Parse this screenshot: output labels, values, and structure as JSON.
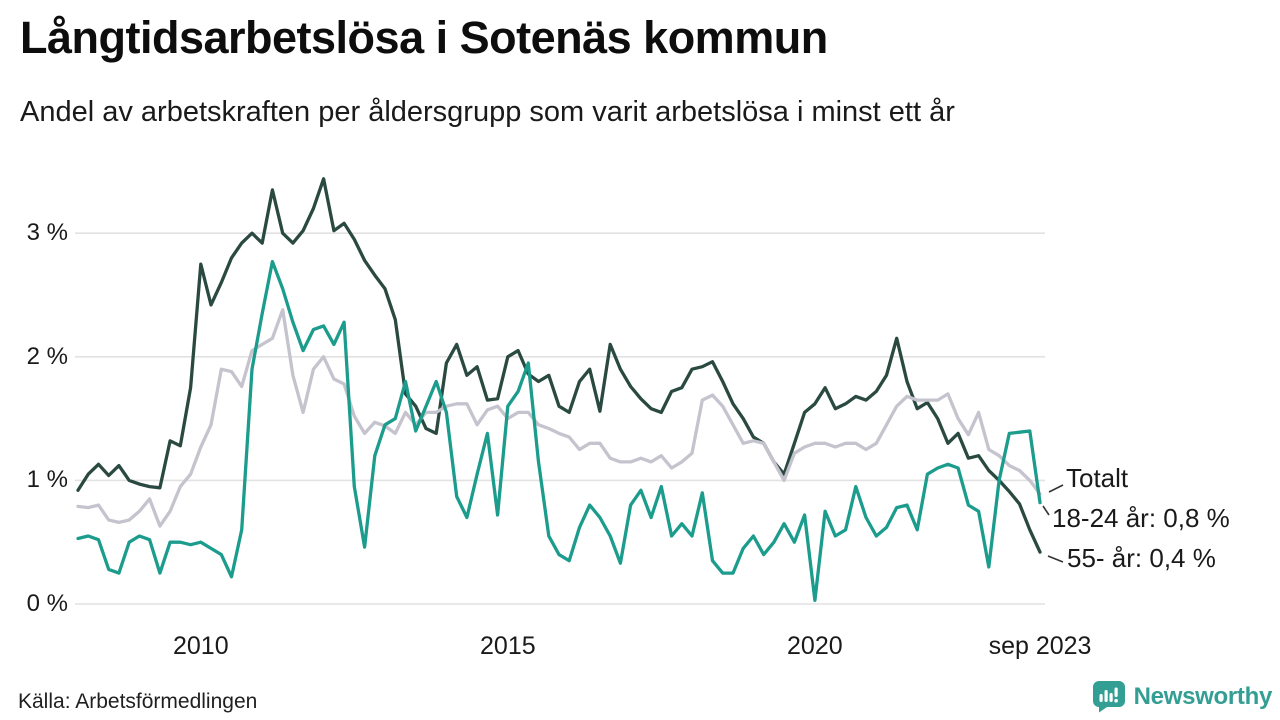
{
  "header": {
    "title": "Långtidsarbetslösa i Sotenäs kommun",
    "subtitle": "Andel av arbetskraften per åldersgrupp som varit arbetslösa i minst ett år"
  },
  "footer": {
    "source": "Källa: Arbetsförmedlingen",
    "brand": "Newsworthy"
  },
  "annotations": {
    "totalt_label": "Totalt",
    "youth_label": "18-24 år: 0,8 %",
    "senior_label": "55- år: 0,4 %"
  },
  "colors": {
    "senior_line": "#2a4a41",
    "total_line": "#c5c3cd",
    "youth_line": "#1b9c8d",
    "grid": "#e2e2e2",
    "connector": "#333333",
    "brand_teal": "#339e93",
    "text": "#1a1a1a"
  },
  "chart_data": {
    "type": "line",
    "title": "Långtidsarbetslösa i Sotenäs kommun",
    "subtitle": "Andel av arbetskraften per åldersgrupp som varit arbetslösa i minst ett år",
    "x_start": "2008-01",
    "x_end": "2023-09",
    "x_step_months": 2,
    "x_total_months": 188,
    "ylim": [
      0,
      3.45
    ],
    "grid": "horizontal",
    "legend_position": "end-of-line-labels",
    "y_ticks": [
      {
        "label": "0 %",
        "value": 0
      },
      {
        "label": "1 %",
        "value": 1
      },
      {
        "label": "2 %",
        "value": 2
      },
      {
        "label": "3 %",
        "value": 3
      }
    ],
    "x_ticks": [
      {
        "label": "2010",
        "month": 24
      },
      {
        "label": "2015",
        "month": 84
      },
      {
        "label": "2020",
        "month": 144
      },
      {
        "label": "sep 2023",
        "month": 188
      }
    ],
    "series": [
      {
        "name": "55- år",
        "end_label": "55- år: 0,4 %",
        "final_value": 0.4,
        "color": "#2a4a41",
        "values": [
          0.92,
          1.05,
          1.13,
          1.04,
          1.12,
          1.0,
          0.97,
          0.95,
          0.94,
          1.32,
          1.28,
          1.75,
          2.75,
          2.42,
          2.6,
          2.8,
          2.92,
          3.0,
          2.92,
          3.35,
          3.0,
          2.92,
          3.02,
          3.2,
          3.44,
          3.02,
          3.08,
          2.95,
          2.78,
          2.66,
          2.55,
          2.3,
          1.7,
          1.6,
          1.42,
          1.38,
          1.95,
          2.1,
          1.85,
          1.92,
          1.65,
          1.66,
          2.0,
          2.05,
          1.86,
          1.8,
          1.85,
          1.6,
          1.55,
          1.8,
          1.9,
          1.56,
          2.1,
          1.9,
          1.76,
          1.66,
          1.58,
          1.55,
          1.72,
          1.75,
          1.9,
          1.92,
          1.96,
          1.8,
          1.62,
          1.5,
          1.35,
          1.3,
          1.15,
          1.05,
          1.3,
          1.55,
          1.62,
          1.75,
          1.58,
          1.62,
          1.68,
          1.65,
          1.72,
          1.85,
          2.15,
          1.8,
          1.58,
          1.63,
          1.5,
          1.3,
          1.38,
          1.18,
          1.2,
          1.08,
          1.0,
          0.91,
          0.81,
          0.6,
          0.42
        ]
      },
      {
        "name": "Totalt",
        "end_label": "Totalt",
        "final_value": 0.9,
        "color": "#c5c3cd",
        "values": [
          0.79,
          0.78,
          0.8,
          0.68,
          0.66,
          0.68,
          0.75,
          0.85,
          0.63,
          0.75,
          0.95,
          1.05,
          1.27,
          1.45,
          1.9,
          1.88,
          1.76,
          2.05,
          2.1,
          2.15,
          2.38,
          1.85,
          1.55,
          1.9,
          2.0,
          1.82,
          1.78,
          1.52,
          1.38,
          1.47,
          1.44,
          1.38,
          1.55,
          1.45,
          1.55,
          1.55,
          1.6,
          1.62,
          1.62,
          1.45,
          1.57,
          1.6,
          1.5,
          1.55,
          1.55,
          1.45,
          1.42,
          1.38,
          1.35,
          1.25,
          1.3,
          1.3,
          1.18,
          1.15,
          1.15,
          1.18,
          1.15,
          1.2,
          1.1,
          1.15,
          1.22,
          1.65,
          1.69,
          1.6,
          1.45,
          1.3,
          1.32,
          1.3,
          1.15,
          1.0,
          1.22,
          1.27,
          1.3,
          1.3,
          1.27,
          1.3,
          1.3,
          1.25,
          1.3,
          1.45,
          1.6,
          1.68,
          1.65,
          1.65,
          1.65,
          1.7,
          1.5,
          1.37,
          1.55,
          1.25,
          1.2,
          1.12,
          1.08,
          1.0,
          0.89
        ]
      },
      {
        "name": "18-24 år",
        "end_label": "18-24 år: 0,8 %",
        "final_value": 0.8,
        "color": "#1b9c8d",
        "values": [
          0.53,
          0.55,
          0.52,
          0.28,
          0.25,
          0.5,
          0.55,
          0.52,
          0.25,
          0.5,
          0.5,
          0.48,
          0.5,
          0.45,
          0.4,
          0.22,
          0.6,
          1.9,
          2.35,
          2.77,
          2.55,
          2.28,
          2.05,
          2.22,
          2.25,
          2.1,
          2.28,
          0.95,
          0.46,
          1.2,
          1.45,
          1.5,
          1.8,
          1.4,
          1.6,
          1.8,
          1.55,
          0.87,
          0.7,
          1.05,
          1.38,
          0.72,
          1.6,
          1.72,
          1.95,
          1.15,
          0.55,
          0.4,
          0.35,
          0.62,
          0.8,
          0.7,
          0.55,
          0.33,
          0.8,
          0.92,
          0.7,
          0.95,
          0.55,
          0.65,
          0.55,
          0.9,
          0.35,
          0.25,
          0.25,
          0.45,
          0.55,
          0.4,
          0.5,
          0.65,
          0.5,
          0.72,
          0.03,
          0.75,
          0.55,
          0.6,
          0.95,
          0.7,
          0.55,
          0.62,
          0.78,
          0.8,
          0.6,
          1.05,
          1.1,
          1.13,
          1.1,
          0.8,
          0.75,
          0.3,
          1.0,
          1.38,
          1.39,
          1.4,
          0.82
        ]
      }
    ]
  }
}
